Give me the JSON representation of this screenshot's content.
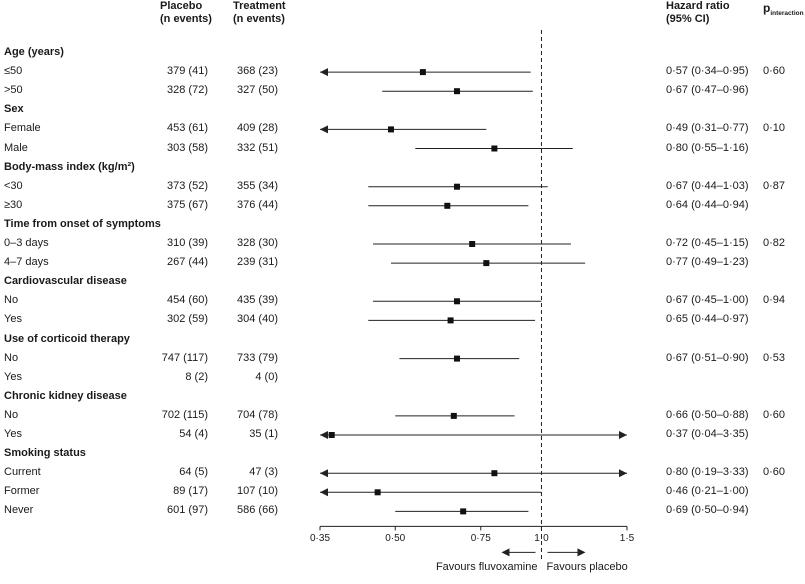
{
  "header": {
    "placebo": "Placebo",
    "placebo_sub": "(n events)",
    "treatment": "Treatment",
    "treatment_sub": "(n events)",
    "hr": "Hazard ratio",
    "hr_sub": "(95% CI)",
    "p": "p",
    "p_sub": "interaction"
  },
  "chart_data": {
    "type": "forest",
    "x_scale": "log",
    "xlim": [
      0.35,
      1.5
    ],
    "reference_line": 1.0,
    "ticks": [
      {
        "v": 0.35,
        "label": "0·35"
      },
      {
        "v": 0.5,
        "label": "0·50"
      },
      {
        "v": 0.75,
        "label": "0·75"
      },
      {
        "v": 1.0,
        "label": "1·0"
      },
      {
        "v": 1.5,
        "label": "1·5"
      }
    ],
    "favours_left": "Favours fluvoxamine",
    "favours_right": "Favours placebo",
    "rows": [
      {
        "kind": "group",
        "label": "Age (years)"
      },
      {
        "label": "≤50",
        "placebo": "379 (41)",
        "treatment": "368 (23)",
        "hr": 0.57,
        "lo": 0.34,
        "hi": 0.95,
        "hr_text": "0·57 (0·34–0·95)",
        "p": "0·60"
      },
      {
        "label": ">50",
        "placebo": "328 (72)",
        "treatment": "327 (50)",
        "hr": 0.67,
        "lo": 0.47,
        "hi": 0.96,
        "hr_text": "0·67 (0·47–0·96)",
        "p": ""
      },
      {
        "kind": "group",
        "label": "Sex"
      },
      {
        "label": "Female",
        "placebo": "453 (61)",
        "treatment": "409 (28)",
        "hr": 0.49,
        "lo": 0.31,
        "hi": 0.77,
        "hr_text": "0·49 (0·31–0·77)",
        "p": "0·10"
      },
      {
        "label": "Male",
        "placebo": "303 (58)",
        "treatment": "332 (51)",
        "hr": 0.8,
        "lo": 0.55,
        "hi": 1.16,
        "hr_text": "0·80 (0·55–1·16)",
        "p": ""
      },
      {
        "kind": "group",
        "label": "Body-mass index (kg/m²)"
      },
      {
        "label": "<30",
        "placebo": "373 (52)",
        "treatment": "355 (34)",
        "hr": 0.67,
        "lo": 0.44,
        "hi": 1.03,
        "hr_text": "0·67 (0·44–1·03)",
        "p": "0·87"
      },
      {
        "label": "≥30",
        "placebo": "375 (67)",
        "treatment": "376 (44)",
        "hr": 0.64,
        "lo": 0.44,
        "hi": 0.94,
        "hr_text": "0·64 (0·44–0·94)",
        "p": ""
      },
      {
        "kind": "group",
        "label": "Time from onset of symptoms"
      },
      {
        "label": "0–3 days",
        "placebo": "310 (39)",
        "treatment": "328 (30)",
        "hr": 0.72,
        "lo": 0.45,
        "hi": 1.15,
        "hr_text": "0·72 (0·45–1·15)",
        "p": "0·82"
      },
      {
        "label": "4–7 days",
        "placebo": "267 (44)",
        "treatment": "239 (31)",
        "hr": 0.77,
        "lo": 0.49,
        "hi": 1.23,
        "hr_text": "0·77 (0·49–1·23)",
        "p": ""
      },
      {
        "kind": "group",
        "label": "Cardiovascular disease"
      },
      {
        "label": "No",
        "placebo": "454 (60)",
        "treatment": "435 (39)",
        "hr": 0.67,
        "lo": 0.45,
        "hi": 1.0,
        "hr_text": "0·67 (0·45–1·00)",
        "p": "0·94"
      },
      {
        "label": "Yes",
        "placebo": "302 (59)",
        "treatment": "304 (40)",
        "hr": 0.65,
        "lo": 0.44,
        "hi": 0.97,
        "hr_text": "0·65 (0·44–0·97)",
        "p": ""
      },
      {
        "kind": "group",
        "label": "Use of corticoid therapy"
      },
      {
        "label": "No",
        "placebo": "747 (117)",
        "treatment": "733 (79)",
        "hr": 0.67,
        "lo": 0.51,
        "hi": 0.9,
        "hr_text": "0·67 (0·51–0·90)",
        "p": "0·53"
      },
      {
        "label": "Yes",
        "placebo": "8 (2)",
        "treatment": "4 (0)",
        "hr": null,
        "lo": null,
        "hi": null,
        "hr_text": "",
        "p": ""
      },
      {
        "kind": "group",
        "label": "Chronic kidney disease"
      },
      {
        "label": "No",
        "placebo": "702 (115)",
        "treatment": "704 (78)",
        "hr": 0.66,
        "lo": 0.5,
        "hi": 0.88,
        "hr_text": "0·66 (0·50–0·88)",
        "p": "0·60"
      },
      {
        "label": "Yes",
        "placebo": "54 (4)",
        "treatment": "35 (1)",
        "hr": 0.37,
        "lo": 0.04,
        "hi": 3.35,
        "hr_text": "0·37 (0·04–3·35)",
        "p": ""
      },
      {
        "kind": "group",
        "label": "Smoking status"
      },
      {
        "label": "Current",
        "placebo": "64 (5)",
        "treatment": "47 (3)",
        "hr": 0.8,
        "lo": 0.19,
        "hi": 3.33,
        "hr_text": "0·80 (0·19–3·33)",
        "p": "0·60"
      },
      {
        "label": "Former",
        "placebo": "89 (17)",
        "treatment": "107 (10)",
        "hr": 0.46,
        "lo": 0.21,
        "hi": 1.0,
        "hr_text": "0·46 (0·21–1·00)",
        "p": ""
      },
      {
        "label": "Never",
        "placebo": "601 (97)",
        "treatment": "586 (66)",
        "hr": 0.69,
        "lo": 0.5,
        "hi": 0.94,
        "hr_text": "0·69 (0·50–0·94)",
        "p": ""
      }
    ]
  }
}
